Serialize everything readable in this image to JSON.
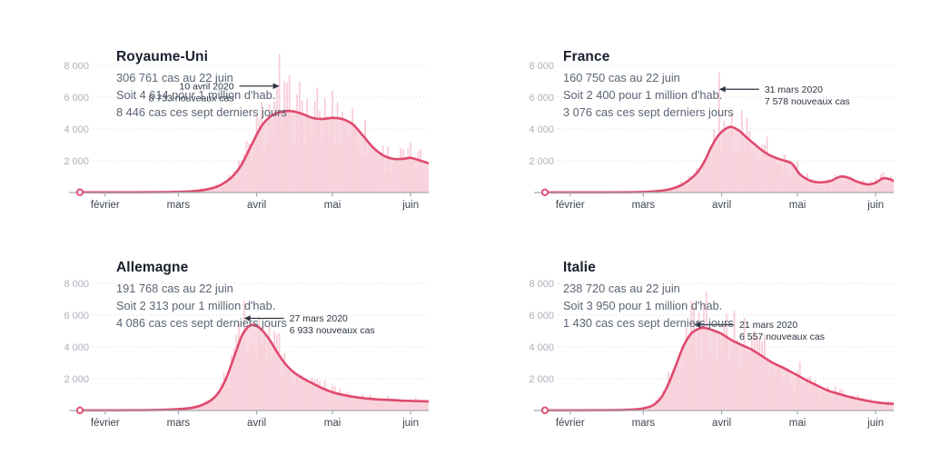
{
  "meta": {
    "background": "#ffffff",
    "as_of_label": "22 juin"
  },
  "style": {
    "line_color": "#df4a6e",
    "area_color": "#f8d0d9",
    "bar_color": "#f3aec1",
    "grid_color": "#d6d8dc",
    "baseline_color": "#a4a9b0",
    "ylabel_color": "#abb1b9",
    "xlabel_color": "#3d4550",
    "title_color": "#18202c",
    "subtitle_color": "#5a6473",
    "annotation_color": "#2c3440"
  },
  "axis": {
    "domain_days": 152,
    "ylim": [
      0,
      9000
    ],
    "grid": "dotted-horizontal",
    "x_ticks": [
      {
        "day": 10,
        "label": "février"
      },
      {
        "day": 39,
        "label": "mars"
      },
      {
        "day": 70,
        "label": "avril"
      },
      {
        "day": 100,
        "label": "mai"
      },
      {
        "day": 131,
        "label": "juin"
      }
    ],
    "y_ticks": [
      {
        "value": 2000,
        "label": "2 000"
      },
      {
        "value": 4000,
        "label": "4 000"
      },
      {
        "value": 6000,
        "label": "6 000"
      },
      {
        "value": 8000,
        "label": "8 000"
      }
    ]
  },
  "chart_data": [
    {
      "type": "area",
      "title": "Royaume-Uni",
      "stats": [
        "306 761 cas au 22 juin",
        "Soit 4 614 pour 1 million d'hab.",
        "8 446 cas ces sept derniers jours"
      ],
      "annotation": {
        "date_label": "10 avril 2020",
        "cases_label": "8 733 nouveaux cas",
        "day": 79,
        "value": 8733,
        "side": "right",
        "label_level": 6700
      },
      "line_points": [
        [
          0,
          15
        ],
        [
          10,
          15
        ],
        [
          20,
          18
        ],
        [
          30,
          25
        ],
        [
          39,
          45
        ],
        [
          45,
          90
        ],
        [
          50,
          190
        ],
        [
          55,
          420
        ],
        [
          60,
          950
        ],
        [
          64,
          1750
        ],
        [
          68,
          3000
        ],
        [
          72,
          4200
        ],
        [
          76,
          4850
        ],
        [
          80,
          5080
        ],
        [
          84,
          5120
        ],
        [
          88,
          4950
        ],
        [
          92,
          4700
        ],
        [
          96,
          4620
        ],
        [
          100,
          4700
        ],
        [
          104,
          4620
        ],
        [
          108,
          4300
        ],
        [
          112,
          3600
        ],
        [
          116,
          2850
        ],
        [
          120,
          2350
        ],
        [
          124,
          2120
        ],
        [
          128,
          2120
        ],
        [
          131,
          2180
        ],
        [
          134,
          2050
        ],
        [
          138,
          1850
        ],
        [
          142,
          1650
        ],
        [
          146,
          1500
        ],
        [
          149,
          1430
        ],
        [
          152,
          1400
        ]
      ]
    },
    {
      "type": "area",
      "title": "France",
      "stats": [
        "160 750 cas au 22 juin",
        "Soit 2 400 pour 1 million d'hab.",
        "3 076 cas ces sept derniers jours"
      ],
      "annotation": {
        "date_label": "31 mars 2020",
        "cases_label": "7 578 nouveaux cas",
        "day": 69,
        "value": 7578,
        "side": "left",
        "label_level": 6500
      },
      "line_points": [
        [
          0,
          10
        ],
        [
          10,
          10
        ],
        [
          20,
          12
        ],
        [
          30,
          18
        ],
        [
          39,
          40
        ],
        [
          45,
          100
        ],
        [
          50,
          230
        ],
        [
          55,
          550
        ],
        [
          60,
          1200
        ],
        [
          63,
          1900
        ],
        [
          66,
          2900
        ],
        [
          69,
          3650
        ],
        [
          72,
          4050
        ],
        [
          74,
          4120
        ],
        [
          77,
          3880
        ],
        [
          80,
          3450
        ],
        [
          83,
          3050
        ],
        [
          86,
          2650
        ],
        [
          89,
          2350
        ],
        [
          92,
          2150
        ],
        [
          95,
          2000
        ],
        [
          98,
          1800
        ],
        [
          101,
          1150
        ],
        [
          105,
          750
        ],
        [
          109,
          640
        ],
        [
          113,
          720
        ],
        [
          117,
          1000
        ],
        [
          120,
          940
        ],
        [
          124,
          660
        ],
        [
          128,
          510
        ],
        [
          131,
          620
        ],
        [
          134,
          900
        ],
        [
          137,
          810
        ],
        [
          140,
          560
        ],
        [
          143,
          440
        ],
        [
          146,
          490
        ],
        [
          149,
          580
        ],
        [
          152,
          660
        ]
      ]
    },
    {
      "type": "area",
      "title": "Allemagne",
      "stats": [
        "191 768 cas au 22 juin",
        "Soit 2 313 pour 1 million d'hab.",
        "4 086 cas ces sept derniers jours"
      ],
      "annotation": {
        "date_label": "27 mars 2020",
        "cases_label": "6 933 nouveaux cas",
        "day": 65,
        "value": 6933,
        "side": "left",
        "label_level": 5800
      },
      "line_points": [
        [
          0,
          10
        ],
        [
          10,
          12
        ],
        [
          20,
          16
        ],
        [
          30,
          35
        ],
        [
          39,
          90
        ],
        [
          44,
          160
        ],
        [
          48,
          320
        ],
        [
          52,
          650
        ],
        [
          55,
          1150
        ],
        [
          58,
          2050
        ],
        [
          61,
          3350
        ],
        [
          64,
          4650
        ],
        [
          66,
          5150
        ],
        [
          68,
          5380
        ],
        [
          70,
          5320
        ],
        [
          72,
          5080
        ],
        [
          75,
          4480
        ],
        [
          78,
          3700
        ],
        [
          81,
          3000
        ],
        [
          84,
          2500
        ],
        [
          87,
          2150
        ],
        [
          90,
          1880
        ],
        [
          93,
          1640
        ],
        [
          96,
          1400
        ],
        [
          100,
          1150
        ],
        [
          104,
          990
        ],
        [
          108,
          870
        ],
        [
          112,
          780
        ],
        [
          116,
          720
        ],
        [
          120,
          680
        ],
        [
          124,
          650
        ],
        [
          128,
          620
        ],
        [
          132,
          600
        ],
        [
          136,
          580
        ],
        [
          140,
          555
        ],
        [
          144,
          540
        ],
        [
          147,
          570
        ],
        [
          150,
          690
        ],
        [
          152,
          810
        ]
      ]
    },
    {
      "type": "area",
      "title": "Italie",
      "stats": [
        "238 720 cas au 22 juin",
        "Soit 3 950 pour 1 million d'hab.",
        "1 430 cas ces sept derniers jours"
      ],
      "annotation": {
        "date_label": "21 mars 2020",
        "cases_label": "6 557 nouveaux cas",
        "day": 59,
        "value": 6557,
        "side": "left",
        "label_level": 5400
      },
      "line_points": [
        [
          0,
          10
        ],
        [
          10,
          12
        ],
        [
          20,
          15
        ],
        [
          28,
          25
        ],
        [
          33,
          45
        ],
        [
          37,
          90
        ],
        [
          40,
          170
        ],
        [
          43,
          350
        ],
        [
          46,
          800
        ],
        [
          49,
          1700
        ],
        [
          52,
          2900
        ],
        [
          55,
          4100
        ],
        [
          58,
          4850
        ],
        [
          61,
          5150
        ],
        [
          63,
          5200
        ],
        [
          66,
          5080
        ],
        [
          70,
          4820
        ],
        [
          74,
          4420
        ],
        [
          78,
          4120
        ],
        [
          82,
          3820
        ],
        [
          86,
          3420
        ],
        [
          90,
          3020
        ],
        [
          94,
          2720
        ],
        [
          97,
          2470
        ],
        [
          100,
          2220
        ],
        [
          104,
          1870
        ],
        [
          108,
          1560
        ],
        [
          112,
          1260
        ],
        [
          116,
          1060
        ],
        [
          120,
          880
        ],
        [
          124,
          730
        ],
        [
          128,
          600
        ],
        [
          132,
          500
        ],
        [
          136,
          440
        ],
        [
          140,
          400
        ],
        [
          144,
          380
        ],
        [
          148,
          370
        ],
        [
          152,
          380
        ]
      ]
    }
  ]
}
